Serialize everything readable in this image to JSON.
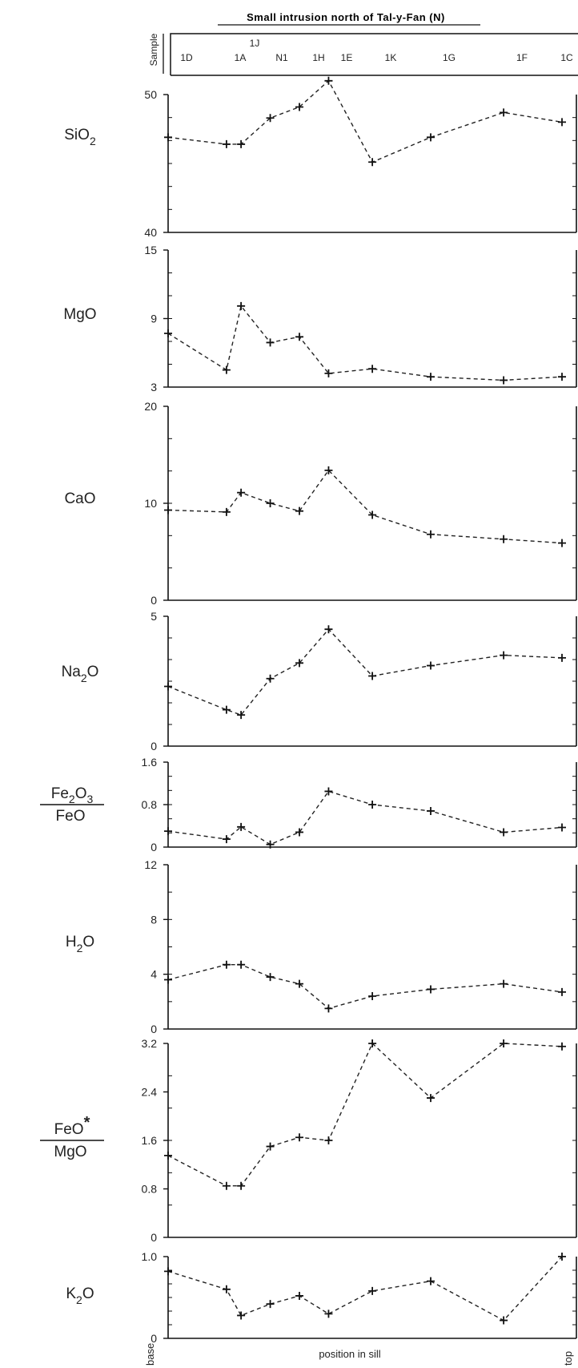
{
  "title": "Small intrusion north of Tal-y-Fan (N)",
  "sample_axis_label": "Sample",
  "samples": [
    "1D",
    "1A",
    "1J",
    "N1",
    "1H",
    "1E",
    "1K",
    "1G",
    "1F",
    "1C"
  ],
  "x_label": "position in sill",
  "x_start_label": "base",
  "x_end_label": "top",
  "chart_data": [
    {
      "type": "line",
      "ylabel": {
        "main": "SiO",
        "sub": "2",
        "tail": ""
      },
      "ylim": [
        40,
        50
      ],
      "yticks": [
        40,
        50
      ],
      "series": [
        {
          "values": [
            [
              1,
              46.9
            ],
            [
              1.4,
              46.4
            ],
            [
              1.5,
              46.4
            ],
            [
              1.7,
              48.3
            ],
            [
              1.9,
              49.1
            ],
            [
              2.1,
              51.0
            ],
            [
              2.4,
              45.1
            ],
            [
              2.8,
              46.9
            ],
            [
              3.3,
              48.7
            ],
            [
              3.7,
              48.0
            ]
          ]
        }
      ]
    },
    {
      "type": "line",
      "ylabel": {
        "main": "MgO",
        "sub": "",
        "tail": ""
      },
      "ylim": [
        3,
        15
      ],
      "yticks": [
        3,
        9,
        15
      ],
      "series": [
        {
          "values": [
            [
              1,
              7.7
            ],
            [
              1.4,
              4.5
            ],
            [
              1.5,
              10.1
            ],
            [
              1.7,
              6.9
            ],
            [
              1.9,
              7.4
            ],
            [
              2.1,
              4.2
            ],
            [
              2.4,
              4.6
            ],
            [
              2.8,
              3.9
            ],
            [
              3.3,
              3.6
            ],
            [
              3.7,
              3.9
            ]
          ]
        }
      ]
    },
    {
      "type": "line",
      "ylabel": {
        "main": "CaO",
        "sub": "",
        "tail": ""
      },
      "ylim": [
        0,
        20
      ],
      "yticks": [
        0,
        10,
        20
      ],
      "series": [
        {
          "values": [
            [
              1,
              9.3
            ],
            [
              1.4,
              9.1
            ],
            [
              1.5,
              11.1
            ],
            [
              1.7,
              10.0
            ],
            [
              1.9,
              9.2
            ],
            [
              2.1,
              13.4
            ],
            [
              2.4,
              8.8
            ],
            [
              2.8,
              6.8
            ],
            [
              3.3,
              6.3
            ],
            [
              3.7,
              5.9
            ]
          ]
        }
      ]
    },
    {
      "type": "line",
      "ylabel": {
        "main": "Na",
        "sub": "2",
        "tail": "O"
      },
      "ylim": [
        0,
        5
      ],
      "yticks": [
        0,
        5
      ],
      "series": [
        {
          "values": [
            [
              1,
              2.3
            ],
            [
              1.4,
              1.4
            ],
            [
              1.5,
              1.2
            ],
            [
              1.7,
              2.6
            ],
            [
              1.9,
              3.2
            ],
            [
              2.1,
              4.5
            ],
            [
              2.4,
              2.7
            ],
            [
              2.8,
              3.1
            ],
            [
              3.3,
              3.5
            ],
            [
              3.7,
              3.4
            ]
          ]
        }
      ]
    },
    {
      "type": "line",
      "ylabel": {
        "fraction": true,
        "num_main": "Fe",
        "num_sub": "2",
        "num_mid": "O",
        "num_sub2": "3",
        "den": "FeO"
      },
      "ylim": [
        0,
        1.6
      ],
      "yticks": [
        0,
        0.8,
        1.6
      ],
      "series": [
        {
          "values": [
            [
              1,
              0.3
            ],
            [
              1.4,
              0.15
            ],
            [
              1.5,
              0.38
            ],
            [
              1.7,
              0.05
            ],
            [
              1.9,
              0.28
            ],
            [
              2.1,
              1.05
            ],
            [
              2.4,
              0.8
            ],
            [
              2.8,
              0.68
            ],
            [
              3.3,
              0.28
            ],
            [
              3.7,
              0.37
            ]
          ]
        }
      ]
    },
    {
      "type": "line",
      "ylabel": {
        "main": "H",
        "sub": "2",
        "tail": "O"
      },
      "ylim": [
        0,
        12
      ],
      "yticks": [
        0,
        4,
        8,
        12
      ],
      "series": [
        {
          "values": [
            [
              1,
              3.6
            ],
            [
              1.4,
              4.7
            ],
            [
              1.5,
              4.7
            ],
            [
              1.7,
              3.8
            ],
            [
              1.9,
              3.3
            ],
            [
              2.1,
              1.5
            ],
            [
              2.4,
              2.4
            ],
            [
              2.8,
              2.9
            ],
            [
              3.3,
              3.3
            ],
            [
              3.7,
              2.7
            ]
          ]
        }
      ]
    },
    {
      "type": "line",
      "ylabel": {
        "fraction": true,
        "num_main": "FeO",
        "num_star": "*",
        "den": "MgO"
      },
      "ylim": [
        0,
        3.2
      ],
      "yticks": [
        0,
        0.8,
        1.6,
        2.4,
        3.2
      ],
      "series": [
        {
          "values": [
            [
              1,
              1.35
            ],
            [
              1.4,
              0.85
            ],
            [
              1.5,
              0.85
            ],
            [
              1.7,
              1.5
            ],
            [
              1.9,
              1.65
            ],
            [
              2.1,
              1.6
            ],
            [
              2.4,
              3.2
            ],
            [
              2.8,
              2.3
            ],
            [
              3.3,
              3.2
            ],
            [
              3.7,
              3.15
            ]
          ]
        }
      ]
    },
    {
      "type": "line",
      "ylabel": {
        "main": "K",
        "sub": "2",
        "tail": "O"
      },
      "ylim": [
        0,
        1.0
      ],
      "yticks": [
        0,
        1.0
      ],
      "series": [
        {
          "values": [
            [
              1,
              0.82
            ],
            [
              1.4,
              0.6
            ],
            [
              1.5,
              0.28
            ],
            [
              1.7,
              0.42
            ],
            [
              1.9,
              0.52
            ],
            [
              2.1,
              0.3
            ],
            [
              2.4,
              0.58
            ],
            [
              2.8,
              0.7
            ],
            [
              3.3,
              0.22
            ],
            [
              3.7,
              1.0
            ]
          ]
        }
      ]
    }
  ]
}
